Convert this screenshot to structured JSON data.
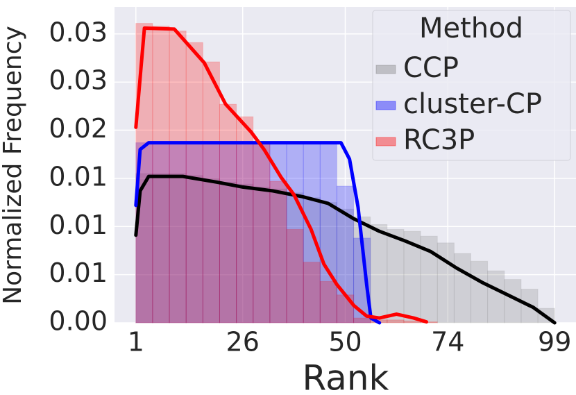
{
  "chart_data": {
    "type": "histogram",
    "x_label": "Rank",
    "y_label": "Normalized Frequency",
    "xlim": [
      -4,
      104
    ],
    "ylim": [
      0,
      0.0328
    ],
    "xticks": [
      1,
      26,
      50,
      74,
      99
    ],
    "yticks": [
      {
        "value": 0,
        "label": "0.00"
      },
      {
        "value": 0.005,
        "label": "0.01"
      },
      {
        "value": 0.01,
        "label": "0.01"
      },
      {
        "value": 0.015,
        "label": "0.01"
      },
      {
        "value": 0.02,
        "label": "0.02"
      },
      {
        "value": 0.025,
        "label": "0.03"
      },
      {
        "value": 0.03,
        "label": "0.03"
      }
    ],
    "grid": true,
    "legend_title": "Method",
    "legend_position": "upper-right",
    "bins": [
      1,
      4.92,
      8.84,
      12.76,
      16.68,
      20.6,
      24.52,
      28.44,
      32.36,
      36.28,
      40.2,
      44.12,
      48.04,
      51.96,
      55.88,
      59.8,
      63.72,
      67.64,
      71.56,
      75.48,
      79.4,
      83.32,
      87.24,
      91.16,
      95.08,
      99
    ],
    "series": [
      {
        "name": "CCP",
        "color": "#808080",
        "line_color": "#000000",
        "values": [
          0.0155,
          0.0155,
          0.0155,
          0.0153,
          0.015,
          0.0146,
          0.0144,
          0.0141,
          0.0139,
          0.0135,
          0.013,
          0.0125,
          0.0118,
          0.011,
          0.0102,
          0.0097,
          0.0095,
          0.009,
          0.0083,
          0.0072,
          0.0064,
          0.0054,
          0.0045,
          0.0035,
          0.0015
        ],
        "kde_x": [
          1,
          2,
          4,
          12,
          20,
          26,
          33,
          40,
          46,
          52,
          58,
          64,
          70,
          76,
          82,
          88,
          94,
          99
        ],
        "kde_values": [
          0.0091,
          0.0137,
          0.0152,
          0.0152,
          0.0146,
          0.0141,
          0.0137,
          0.0131,
          0.0124,
          0.0108,
          0.0095,
          0.0085,
          0.0074,
          0.0057,
          0.0042,
          0.0029,
          0.0016,
          0
        ]
      },
      {
        "name": "cluster-CP",
        "color": "#0000ff",
        "line_color": "#0000ff",
        "values": [
          0.0187,
          0.0187,
          0.0187,
          0.0187,
          0.0187,
          0.0187,
          0.0187,
          0.0187,
          0.0187,
          0.0187,
          0.0187,
          0.0187,
          0.0142,
          0.0088,
          0,
          0,
          0,
          0,
          0,
          0,
          0,
          0,
          0,
          0,
          0
        ],
        "kde_x": [
          1,
          2,
          4,
          20,
          40,
          49,
          51,
          53,
          55,
          56,
          58
        ],
        "kde_values": [
          0.0122,
          0.018,
          0.0187,
          0.0187,
          0.0187,
          0.0187,
          0.017,
          0.012,
          0.004,
          0.0005,
          0
        ]
      },
      {
        "name": "RC3P",
        "color": "#ff0000",
        "line_color": "#ff0000",
        "values": [
          0.0311,
          0.0308,
          0.0303,
          0.0291,
          0.0271,
          0.0227,
          0.0214,
          0.0186,
          0.0147,
          0.0097,
          0.0063,
          0.0043,
          0.0029,
          0.0005,
          0.0003,
          0.0003,
          0.0002,
          0.0001,
          0,
          0,
          0,
          0,
          0,
          0,
          0
        ],
        "kde_x": [
          1,
          3,
          10,
          17,
          22,
          28,
          31,
          35,
          38,
          42,
          45,
          48,
          52,
          55,
          58,
          62,
          66,
          69
        ],
        "kde_values": [
          0.0203,
          0.0306,
          0.0305,
          0.027,
          0.0227,
          0.0198,
          0.018,
          0.0151,
          0.0133,
          0.0097,
          0.0061,
          0.004,
          0.0018,
          0.0007,
          0.0005,
          0.0009,
          0.0005,
          0.0001
        ]
      }
    ]
  }
}
